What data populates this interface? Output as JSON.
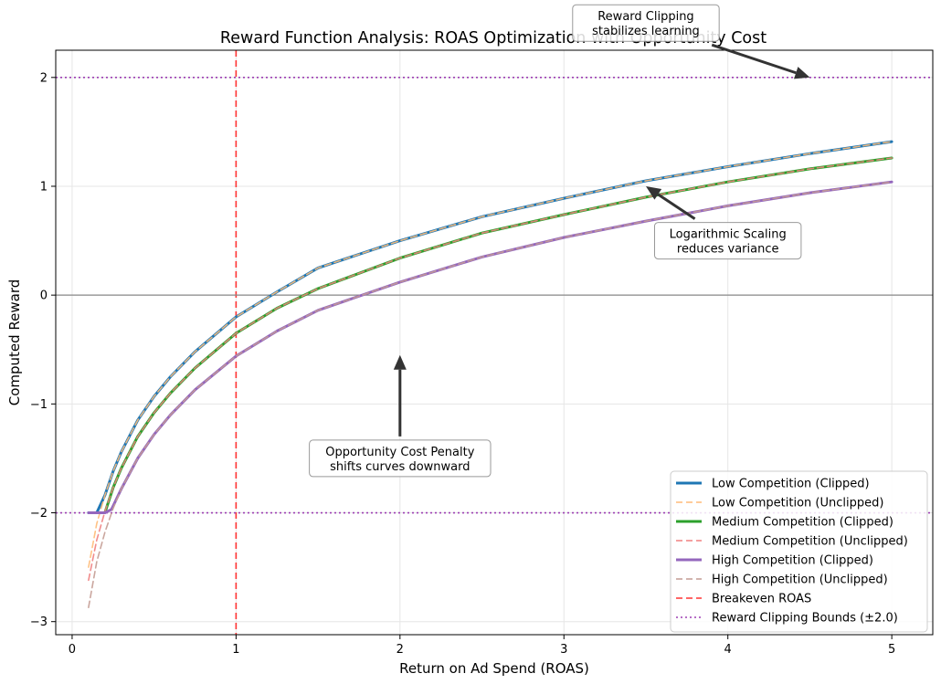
{
  "chart_data": {
    "type": "line",
    "title": "Reward Function Analysis: ROAS Optimization with Opportunity Cost",
    "xlabel": "Return on Ad Spend (ROAS)",
    "ylabel": "Computed Reward",
    "xlim": [
      -0.1,
      5.25
    ],
    "ylim": [
      -3.12,
      2.25
    ],
    "xticks": [
      0,
      1,
      2,
      3,
      4,
      5
    ],
    "yticks": [
      -3,
      -2,
      -1,
      0,
      1,
      2
    ],
    "ytick_labels": [
      "−3",
      "−2",
      "−1",
      "0",
      "1",
      "2"
    ],
    "grid": true,
    "legend_position": "lower-right",
    "series": [
      {
        "name": "Low Competition (Clipped)",
        "style": "solid",
        "color": "#1f77b4",
        "width": 3,
        "x": [
          0.1,
          0.15,
          0.2,
          0.25,
          0.3,
          0.4,
          0.5,
          0.6,
          0.75,
          1,
          1.25,
          1.5,
          2,
          2.5,
          3,
          3.5,
          4,
          4.5,
          5
        ],
        "y": [
          -2,
          -2,
          -1.84,
          -1.62,
          -1.44,
          -1.15,
          -0.93,
          -0.75,
          -0.52,
          -0.2,
          0.03,
          0.25,
          0.5,
          0.72,
          0.89,
          1.05,
          1.18,
          1.3,
          1.41
        ]
      },
      {
        "name": "Low Competition (Unclipped)",
        "style": "dashed",
        "color": "#ffbb78",
        "width": 1.6,
        "x": [
          0.1,
          0.15,
          0.2,
          0.25,
          0.3,
          0.4,
          0.5,
          0.6,
          0.75,
          1,
          1.25,
          1.5,
          2,
          2.5,
          3,
          3.5,
          4,
          4.5,
          5
        ],
        "y": [
          -2.5,
          -2.1,
          -1.84,
          -1.62,
          -1.44,
          -1.15,
          -0.93,
          -0.75,
          -0.52,
          -0.2,
          0.03,
          0.25,
          0.5,
          0.72,
          0.89,
          1.05,
          1.18,
          1.3,
          1.41
        ]
      },
      {
        "name": "Medium Competition (Clipped)",
        "style": "solid",
        "color": "#2ca02c",
        "width": 3,
        "x": [
          0.15,
          0.2,
          0.25,
          0.3,
          0.4,
          0.5,
          0.6,
          0.75,
          1,
          1.25,
          1.5,
          2,
          2.5,
          3,
          3.5,
          4,
          4.5,
          5
        ],
        "y": [
          -2,
          -2,
          -1.77,
          -1.59,
          -1.3,
          -1.08,
          -0.9,
          -0.67,
          -0.35,
          -0.12,
          0.06,
          0.34,
          0.57,
          0.74,
          0.9,
          1.04,
          1.16,
          1.26
        ]
      },
      {
        "name": "Medium Competition (Unclipped)",
        "style": "dashed",
        "color": "#f08080",
        "width": 1.6,
        "x": [
          0.1,
          0.15,
          0.2,
          0.25,
          0.3,
          0.4,
          0.5,
          0.6,
          0.75,
          1,
          1.25,
          1.5,
          2,
          2.5,
          3,
          3.5,
          4,
          4.5,
          5
        ],
        "y": [
          -2.62,
          -2.25,
          -1.99,
          -1.77,
          -1.59,
          -1.3,
          -1.08,
          -0.9,
          -0.67,
          -0.35,
          -0.12,
          0.06,
          0.34,
          0.57,
          0.74,
          0.9,
          1.04,
          1.16,
          1.26
        ]
      },
      {
        "name": "High Competition (Clipped)",
        "style": "solid",
        "color": "#9467bd",
        "width": 3,
        "x": [
          0.1,
          0.15,
          0.2,
          0.24,
          0.3,
          0.4,
          0.5,
          0.6,
          0.75,
          1,
          1.25,
          1.5,
          2,
          2.5,
          3,
          3.5,
          4,
          4.5,
          5
        ],
        "y": [
          -2,
          -2,
          -2,
          -1.97,
          -1.78,
          -1.5,
          -1.28,
          -1.1,
          -0.87,
          -0.56,
          -0.33,
          -0.14,
          0.12,
          0.35,
          0.53,
          0.68,
          0.82,
          0.94,
          1.04
        ]
      },
      {
        "name": "High Competition (Unclipped)",
        "style": "dashed",
        "color": "#c49c94",
        "width": 1.6,
        "x": [
          0.1,
          0.15,
          0.2,
          0.25,
          0.3,
          0.4,
          0.5,
          0.6,
          0.75,
          1,
          1.25,
          1.5,
          2,
          2.5,
          3,
          3.5,
          4,
          4.5,
          5
        ],
        "y": [
          -2.87,
          -2.45,
          -2.18,
          -1.96,
          -1.78,
          -1.5,
          -1.28,
          -1.1,
          -0.87,
          -0.56,
          -0.33,
          -0.14,
          0.12,
          0.35,
          0.53,
          0.68,
          0.82,
          0.94,
          1.04
        ]
      }
    ],
    "reference_lines": [
      {
        "name": "Breakeven ROAS",
        "orientation": "vertical",
        "value": 1.0,
        "style": "dashed",
        "color": "#ff3333"
      },
      {
        "name": "Reward Clipping Bounds (±2.0)",
        "orientation": "horizontal",
        "value": 2.0,
        "style": "dotted",
        "color": "#9d3fb3"
      },
      {
        "name": "",
        "orientation": "horizontal",
        "value": -2.0,
        "style": "dotted",
        "color": "#9d3fb3"
      },
      {
        "name": "",
        "orientation": "horizontal",
        "value": 0.0,
        "style": "solid",
        "color": "#888888"
      }
    ],
    "annotations": [
      {
        "lines": [
          "Reward Clipping",
          "stabilizes learning"
        ],
        "text_at": [
          3.5,
          2.5
        ],
        "arrow_to": [
          4.5,
          2.0
        ]
      },
      {
        "lines": [
          "Logarithmic Scaling",
          "reduces variance"
        ],
        "text_at": [
          4.0,
          0.5
        ],
        "arrow_to": [
          3.5,
          1.0
        ]
      },
      {
        "lines": [
          "Opportunity Cost Penalty",
          "shifts curves downward"
        ],
        "text_at": [
          2.0,
          -1.5
        ],
        "arrow_to": [
          2.0,
          -0.55
        ]
      }
    ],
    "legend": [
      {
        "label": "Low Competition (Clipped)",
        "color": "#1f77b4",
        "style": "solid"
      },
      {
        "label": "Low Competition (Unclipped)",
        "color": "#ffbb78",
        "style": "dashed"
      },
      {
        "label": "Medium Competition (Clipped)",
        "color": "#2ca02c",
        "style": "solid"
      },
      {
        "label": "Medium Competition (Unclipped)",
        "color": "#f08080",
        "style": "dashed"
      },
      {
        "label": "High Competition (Clipped)",
        "color": "#9467bd",
        "style": "solid"
      },
      {
        "label": "High Competition (Unclipped)",
        "color": "#c49c94",
        "style": "dashed"
      },
      {
        "label": "Breakeven ROAS",
        "color": "#ff3333",
        "style": "dashed"
      },
      {
        "label": "Reward Clipping Bounds (±2.0)",
        "color": "#9d3fb3",
        "style": "dotted"
      }
    ]
  }
}
